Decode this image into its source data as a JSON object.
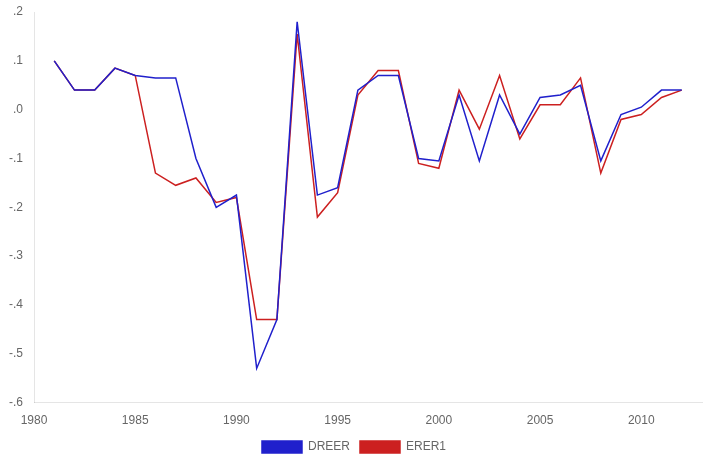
{
  "chart_data": {
    "type": "line",
    "x": [
      1981,
      1982,
      1983,
      1984,
      1985,
      1986,
      1987,
      1988,
      1989,
      1990,
      1991,
      1992,
      1993,
      1994,
      1995,
      1996,
      1997,
      1998,
      1999,
      2000,
      2001,
      2002,
      2003,
      2004,
      2005,
      2006,
      2007,
      2008,
      2009,
      2010,
      2011,
      2012
    ],
    "series": [
      {
        "name": "DREER",
        "color": "#2020cc",
        "values": [
          0.1,
          0.04,
          0.04,
          0.085,
          0.07,
          0.065,
          0.065,
          -0.1,
          -0.2,
          -0.175,
          -0.53,
          -0.43,
          0.18,
          -0.175,
          -0.16,
          0.04,
          0.07,
          0.07,
          -0.1,
          -0.105,
          0.03,
          -0.105,
          0.03,
          -0.05,
          0.025,
          0.03,
          0.05,
          -0.105,
          -0.01,
          0.005,
          0.04,
          0.04
        ]
      },
      {
        "name": "ERER1",
        "color": "#cc2020",
        "values": [
          0.1,
          0.04,
          0.04,
          0.085,
          0.07,
          -0.13,
          -0.155,
          -0.14,
          -0.19,
          -0.18,
          -0.43,
          -0.43,
          0.155,
          -0.22,
          -0.17,
          0.03,
          0.08,
          0.08,
          -0.11,
          -0.12,
          0.04,
          -0.04,
          0.07,
          -0.06,
          0.01,
          0.01,
          0.065,
          -0.13,
          -0.02,
          -0.01,
          0.025,
          0.04
        ]
      }
    ],
    "xlim": [
      1980,
      2013
    ],
    "xticks": [
      1980,
      1985,
      1990,
      1995,
      2000,
      2005,
      2010
    ],
    "ylim": [
      -0.6,
      0.2
    ],
    "yticks": [
      {
        "value": 0.2,
        "label": ".2"
      },
      {
        "value": 0.1,
        "label": ".1"
      },
      {
        "value": 0.0,
        "label": ".0"
      },
      {
        "value": -0.1,
        "label": "-.1"
      },
      {
        "value": -0.2,
        "label": "-.2"
      },
      {
        "value": -0.3,
        "label": "-.3"
      },
      {
        "value": -0.4,
        "label": "-.4"
      },
      {
        "value": -0.5,
        "label": "-.5"
      },
      {
        "value": -0.6,
        "label": "-.6"
      }
    ],
    "grid": false,
    "legend": "bottom"
  }
}
